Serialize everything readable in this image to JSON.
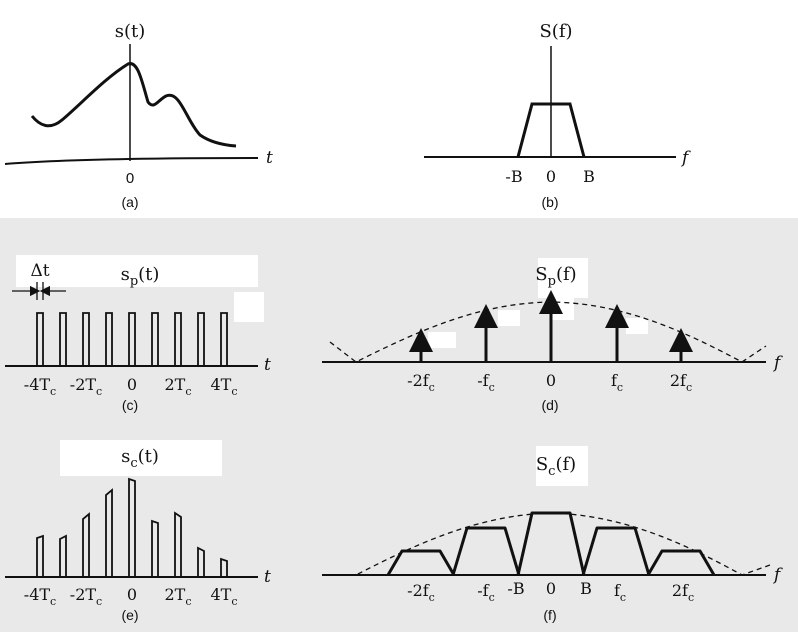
{
  "background_color": "#e9e9e9",
  "highlight_color": "#ffffff",
  "stroke_color": "#111111",
  "panels": {
    "a": {
      "caption": "(a)",
      "title": "s(t)",
      "title_sub": "",
      "title_suffix": "",
      "axis_var": "t",
      "ticks": [
        "0"
      ]
    },
    "b": {
      "caption": "(b)",
      "title": "S(f)",
      "title_sub": "",
      "title_suffix": "",
      "axis_var": "f",
      "ticks": [
        "-B",
        "0",
        "B"
      ]
    },
    "c": {
      "caption": "(c)",
      "title": "s",
      "title_sub": "p",
      "title_suffix": "(t)",
      "axis_var": "t",
      "width_label": "Δt",
      "ticks": [
        {
          "main": "-4T",
          "sub": "c"
        },
        {
          "main": "-2T",
          "sub": "c"
        },
        {
          "main": "0",
          "sub": ""
        },
        {
          "main": "2T",
          "sub": "c"
        },
        {
          "main": "4T",
          "sub": "c"
        }
      ]
    },
    "d": {
      "caption": "(d)",
      "title": "S",
      "title_sub": "p",
      "title_suffix": "(f)",
      "axis_var": "f",
      "ticks": [
        {
          "main": "-2f",
          "sub": "c"
        },
        {
          "main": "-f",
          "sub": "c"
        },
        {
          "main": "0",
          "sub": ""
        },
        {
          "main": "f",
          "sub": "c"
        },
        {
          "main": "2f",
          "sub": "c"
        }
      ]
    },
    "e": {
      "caption": "(e)",
      "title": "s",
      "title_sub": "c",
      "title_suffix": "(t)",
      "axis_var": "t",
      "ticks": [
        {
          "main": "-4T",
          "sub": "c"
        },
        {
          "main": "-2T",
          "sub": "c"
        },
        {
          "main": "0",
          "sub": ""
        },
        {
          "main": "2T",
          "sub": "c"
        },
        {
          "main": "4T",
          "sub": "c"
        }
      ]
    },
    "f": {
      "caption": "(f)",
      "title": "S",
      "title_sub": "c",
      "title_suffix": "(f)",
      "axis_var": "f",
      "ticks": [
        {
          "main": "-2f",
          "sub": "c"
        },
        {
          "main": "-f",
          "sub": "c"
        },
        {
          "main": "-B",
          "sub": ""
        },
        {
          "main": "0",
          "sub": ""
        },
        {
          "main": "B",
          "sub": ""
        },
        {
          "main": "f",
          "sub": "c"
        },
        {
          "main": "2f",
          "sub": "c"
        }
      ]
    }
  }
}
